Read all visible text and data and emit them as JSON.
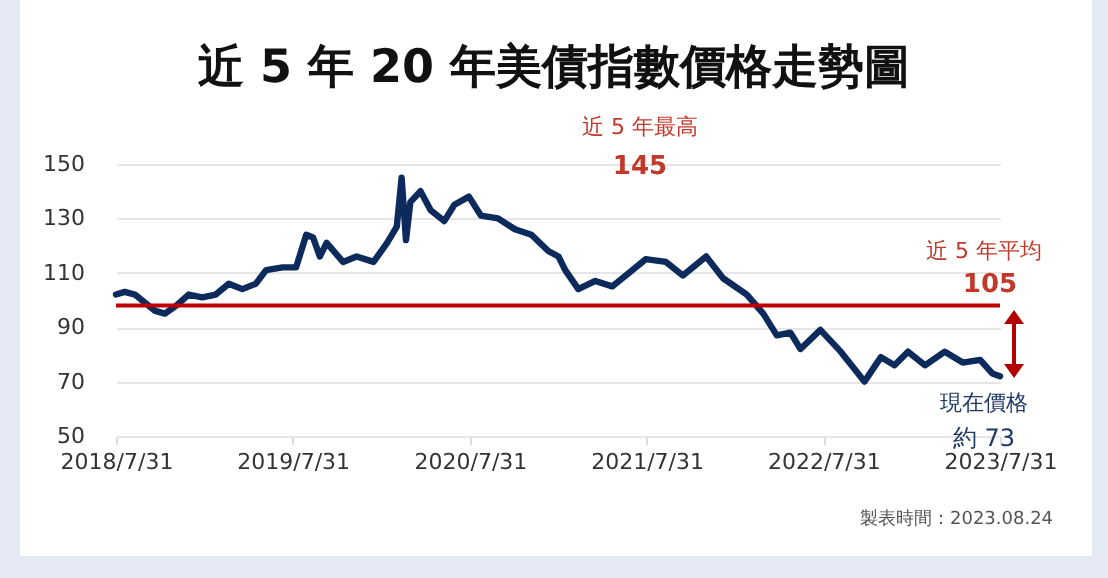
{
  "chart_data": {
    "type": "line",
    "title": "近 5 年 20 年美債指數價格走勢圖",
    "x": [
      "2018-07-31",
      "2018-08-18",
      "2018-09-08",
      "2018-09-29",
      "2018-10-20",
      "2018-11-09",
      "2018-12-03",
      "2018-12-28",
      "2019-01-25",
      "2019-02-22",
      "2019-03-21",
      "2019-04-18",
      "2019-05-16",
      "2019-06-06",
      "2019-07-10",
      "2019-08-07",
      "2019-08-28",
      "2019-09-11",
      "2019-09-25",
      "2019-10-09",
      "2019-11-12",
      "2019-12-10",
      "2020-01-14",
      "2020-02-11",
      "2020-03-02",
      "2020-03-12",
      "2020-03-21",
      "2020-03-30",
      "2020-04-20",
      "2020-05-11",
      "2020-06-08",
      "2020-06-29",
      "2020-07-29",
      "2020-08-23",
      "2020-09-27",
      "2020-11-01",
      "2020-12-05",
      "2021-01-09",
      "2021-01-30",
      "2021-02-13",
      "2021-03-12",
      "2021-04-16",
      "2021-05-21",
      "2021-07-02",
      "2021-07-29",
      "2021-09-09",
      "2021-10-14",
      "2021-12-01",
      "2022-01-05",
      "2022-02-23",
      "2022-03-29",
      "2022-04-26",
      "2022-05-24",
      "2022-06-14",
      "2022-07-25",
      "2022-09-05",
      "2022-10-24",
      "2022-11-27",
      "2022-12-25",
      "2023-01-22",
      "2023-02-26",
      "2023-04-08",
      "2023-05-15",
      "2023-06-20",
      "2023-07-15",
      "2023-07-31"
    ],
    "series": [
      {
        "color": "#0d2a5c",
        "values": [
          102,
          103,
          102,
          99,
          96,
          95,
          98,
          102,
          101,
          102,
          106,
          104,
          106,
          111,
          112,
          112,
          124,
          123,
          116,
          121,
          114,
          116,
          114,
          121,
          127,
          145,
          122,
          136,
          140,
          133,
          129,
          135,
          138,
          131,
          130,
          126,
          124,
          118,
          116,
          111,
          104,
          107,
          105,
          111,
          115,
          114,
          109,
          116,
          108,
          102,
          95,
          87,
          88,
          82,
          89,
          81,
          70,
          79,
          76,
          81,
          76,
          81,
          77,
          78,
          73,
          72
        ]
      }
    ],
    "xlim": [
      "2018-07-31",
      "2023-07-31"
    ],
    "xticks": [
      {
        "value": "2018-07-31",
        "label": "2018/7/31"
      },
      {
        "value": "2019-07-31",
        "label": "2019/7/31"
      },
      {
        "value": "2020-07-31",
        "label": "2020/7/31"
      },
      {
        "value": "2021-07-31",
        "label": "2021/7/31"
      },
      {
        "value": "2022-07-31",
        "label": "2022/7/31"
      },
      {
        "value": "2023-07-31",
        "label": "2023/7/31"
      }
    ],
    "ylim": [
      50,
      150
    ],
    "yticks": [
      50,
      70,
      90,
      110,
      130,
      150
    ],
    "grid": "y",
    "marker": "none",
    "line_style": "solid",
    "ref_lines": [
      {
        "axis": "y",
        "value": 98,
        "color": "#c00000"
      }
    ],
    "annotations": [
      "近 5 年最高",
      "145",
      "近 5 年平均",
      "105",
      "現在價格",
      "約 73",
      "製表時間：2023.08.24"
    ]
  }
}
